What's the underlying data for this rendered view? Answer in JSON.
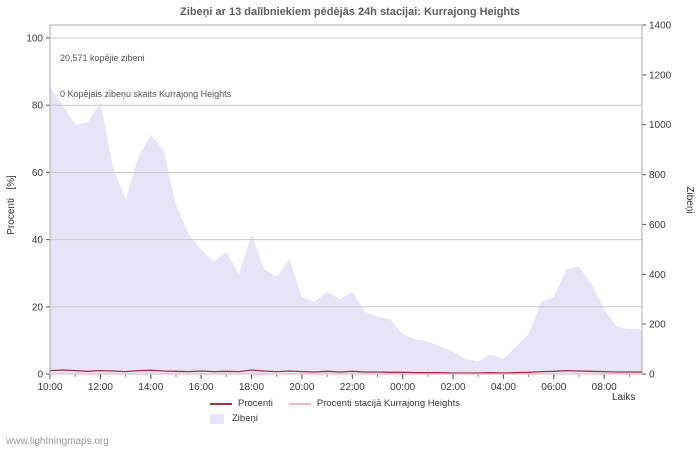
{
  "title": "Zibeņi ar 13 dalībniekiem pēdējās 24h stacijai: Kurrajong Heights",
  "annotations": {
    "total": "20,571 kopējie zibeni",
    "station_total": "0 Kopējais zibeņu skaits Kurrajong Heights"
  },
  "axes": {
    "left_label": "Procenti   [%]",
    "right_label": "Zibeņi",
    "x_label": "Laiks"
  },
  "legend": [
    {
      "label": "Procenti",
      "color": "#a8323c",
      "type": "line"
    },
    {
      "label": "Procenti stacijā Kurrajong Heights",
      "color": "#f2b9c4",
      "type": "line"
    },
    {
      "label": "Zibeņi",
      "color": "#e7e4f8",
      "type": "area"
    }
  ],
  "watermark": "www.lightningmaps.org",
  "chart_data": {
    "type": "area",
    "title": "Zibeņi ar 13 dalībniekiem pēdējās 24h stacijai: Kurrajong Heights",
    "x_label": "Laiks",
    "x_interval": "30min",
    "x_ticks": [
      "10:00",
      "12:00",
      "14:00",
      "16:00",
      "18:00",
      "20:00",
      "22:00",
      "00:00",
      "02:00",
      "04:00",
      "06:00",
      "08:00"
    ],
    "left_axis": {
      "label": "Procenti [%]",
      "range": [
        0,
        100
      ],
      "ticks": [
        0,
        20,
        40,
        60,
        80,
        100
      ]
    },
    "right_axis": {
      "label": "Zibeņi",
      "range": [
        0,
        1400
      ],
      "ticks": [
        0,
        200,
        400,
        600,
        800,
        1000,
        1200,
        1400
      ]
    },
    "grid": true,
    "legend_position": "bottom",
    "series": [
      {
        "name": "Zibeņi",
        "type": "area",
        "axis": "right",
        "color": "#e7e4f8",
        "values": [
          1150,
          1080,
          1000,
          1010,
          1090,
          830,
          700,
          870,
          960,
          900,
          680,
          560,
          500,
          450,
          490,
          400,
          560,
          420,
          390,
          460,
          310,
          290,
          330,
          300,
          330,
          250,
          230,
          220,
          160,
          140,
          130,
          110,
          90,
          60,
          50,
          80,
          60,
          110,
          160,
          290,
          310,
          420,
          430,
          360,
          260,
          190,
          180,
          180
        ]
      },
      {
        "name": "Procenti",
        "type": "line",
        "axis": "left",
        "color": "#a8323c",
        "values": [
          1,
          1.2,
          1,
          0.8,
          1,
          0.9,
          0.7,
          1,
          1.1,
          0.9,
          0.8,
          0.7,
          0.9,
          0.7,
          0.8,
          0.7,
          1.2,
          0.9,
          0.7,
          0.9,
          0.7,
          0.6,
          0.8,
          0.6,
          0.8,
          0.6,
          0.6,
          0.5,
          0.5,
          0.4,
          0.4,
          0.4,
          0.3,
          0.3,
          0.3,
          0.4,
          0.3,
          0.4,
          0.5,
          0.7,
          0.8,
          1,
          0.9,
          0.8,
          0.7,
          0.6,
          0.6,
          0.6
        ]
      },
      {
        "name": "Procenti stacijā Kurrajong Heights",
        "type": "line",
        "axis": "left",
        "color": "#f2b9c4",
        "values": [
          0,
          0,
          0,
          0,
          0,
          0,
          0,
          0,
          0,
          0,
          0,
          0,
          0,
          0,
          0,
          0,
          0,
          0,
          0,
          0,
          0,
          0,
          0,
          0,
          0,
          0,
          0,
          0,
          0,
          0,
          0,
          0,
          0,
          0,
          0,
          0,
          0,
          0,
          0,
          0,
          0,
          0,
          0,
          0,
          0,
          0,
          0,
          0
        ]
      }
    ]
  }
}
